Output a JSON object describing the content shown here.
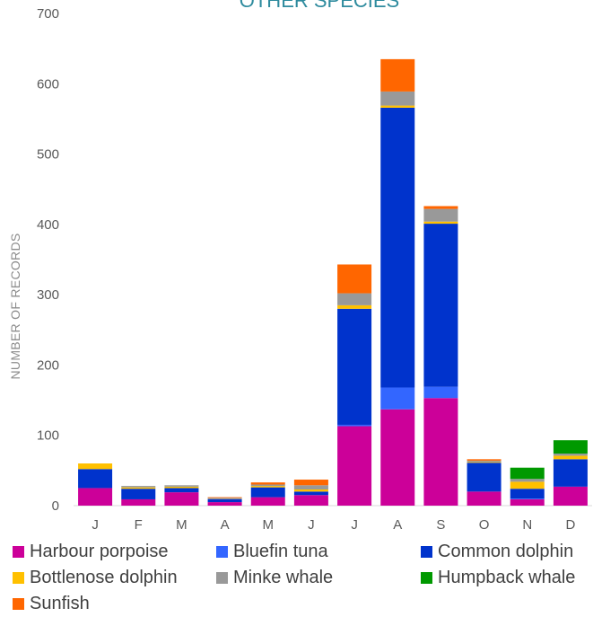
{
  "chart_data": {
    "type": "bar",
    "stacked": true,
    "title": "OTHER SPECIES",
    "ylabel": "NUMBER OF RECORDS",
    "xlabel": "",
    "ylim": [
      0,
      700
    ],
    "yticks": [
      0,
      100,
      200,
      300,
      400,
      500,
      600,
      700
    ],
    "grid": false,
    "legend_position": "bottom",
    "categories": [
      "J",
      "F",
      "M",
      "A",
      "M",
      "J",
      "J",
      "A",
      "S",
      "O",
      "N",
      "D"
    ],
    "series": [
      {
        "name": "Harbour porpoise",
        "color": "#cc0099",
        "values": [
          25,
          9,
          19,
          5,
          12,
          15,
          113,
          137,
          153,
          20,
          9,
          27
        ]
      },
      {
        "name": "Bluefin tuna",
        "color": "#3366ff",
        "values": [
          0,
          0,
          0,
          0,
          0,
          0,
          2,
          31,
          16,
          0,
          1,
          0
        ]
      },
      {
        "name": "Common dolphin",
        "color": "#0033cc",
        "values": [
          27,
          15,
          6,
          4,
          14,
          5,
          165,
          398,
          232,
          41,
          14,
          39
        ]
      },
      {
        "name": "Bottlenose dolphin",
        "color": "#ffc000",
        "values": [
          8,
          2,
          2,
          0,
          2,
          3,
          5,
          3,
          3,
          1,
          10,
          5
        ]
      },
      {
        "name": "Minke whale",
        "color": "#999999",
        "values": [
          0,
          2,
          2,
          2,
          2,
          6,
          17,
          20,
          18,
          2,
          4,
          3
        ]
      },
      {
        "name": "Humpback whale",
        "color": "#009900",
        "values": [
          0,
          0,
          0,
          0,
          0,
          0,
          0,
          0,
          0,
          0,
          16,
          19
        ]
      },
      {
        "name": "Sunfish",
        "color": "#ff6600",
        "values": [
          0,
          0,
          0,
          1,
          3,
          8,
          41,
          46,
          4,
          2,
          0,
          0
        ]
      }
    ]
  }
}
